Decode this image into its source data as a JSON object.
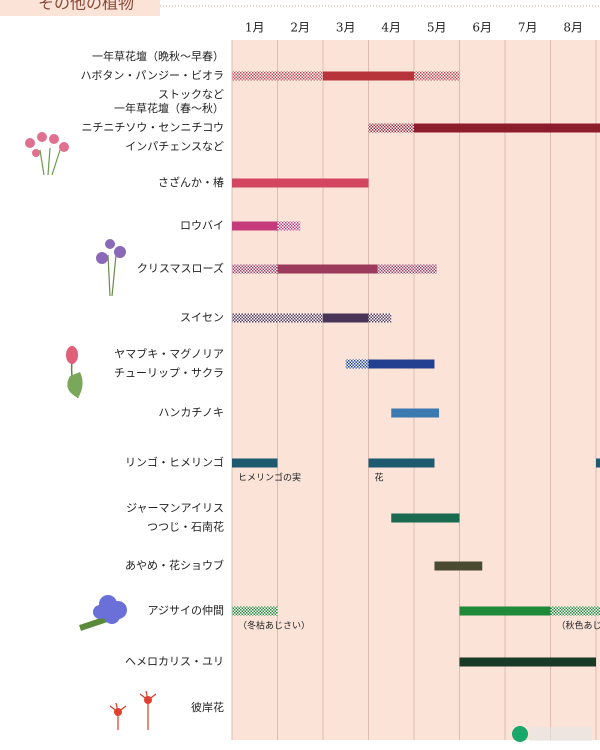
{
  "chart_data": {
    "type": "gantt",
    "title": "その他の植物",
    "months": [
      "1月",
      "2月",
      "3月",
      "4月",
      "5月",
      "6月",
      "7月",
      "8月"
    ],
    "xlim": [
      1,
      9.1
    ],
    "xticks": [
      1,
      2,
      3,
      4,
      5,
      6,
      7,
      8,
      9
    ],
    "grid": true,
    "background": "#fbe3d8",
    "rows": [
      {
        "label": [
          "一年草花壇（晩秋～早春）",
          "ハボタン・パンジー・ビオラ",
          "ストックなど"
        ],
        "segments": [
          {
            "start": 1,
            "end": 3,
            "style": "hatched",
            "color": "#c0464a"
          },
          {
            "start": 3,
            "end": 5,
            "style": "solid",
            "color": "#b7353a"
          },
          {
            "start": 5,
            "end": 6,
            "style": "hatched",
            "color": "#c0464a"
          }
        ]
      },
      {
        "label": [
          "一年草花壇（春～秋）",
          "ニチニチソウ・センニチコウ",
          "インパチェンスなど"
        ],
        "segments": [
          {
            "start": 4,
            "end": 5,
            "style": "hatched",
            "color": "#a02838"
          },
          {
            "start": 5,
            "end": 9.1,
            "style": "solid",
            "color": "#8c1b2c"
          }
        ]
      },
      {
        "label": [
          "さざんか・椿"
        ],
        "segments": [
          {
            "start": 1,
            "end": 4,
            "style": "solid",
            "color": "#d2475f"
          }
        ]
      },
      {
        "label": [
          "ロウバイ"
        ],
        "segments": [
          {
            "start": 1,
            "end": 2,
            "style": "solid",
            "color": "#c53a7a"
          },
          {
            "start": 2,
            "end": 2.5,
            "style": "hatched",
            "color": "#c53a7a"
          }
        ]
      },
      {
        "label": [
          "クリスマスローズ"
        ],
        "segments": [
          {
            "start": 1,
            "end": 2,
            "style": "hatched",
            "color": "#9c3a5c"
          },
          {
            "start": 2,
            "end": 4.2,
            "style": "solid",
            "color": "#9c3a5c"
          },
          {
            "start": 4.2,
            "end": 5.5,
            "style": "hatched",
            "color": "#9c3a5c"
          }
        ]
      },
      {
        "label": [
          "スイセン"
        ],
        "segments": [
          {
            "start": 1,
            "end": 3,
            "style": "hatched",
            "color": "#5a3a5e"
          },
          {
            "start": 3,
            "end": 4,
            "style": "solid",
            "color": "#4a3458"
          },
          {
            "start": 4,
            "end": 4.5,
            "style": "hatched",
            "color": "#5a3a5e"
          }
        ]
      },
      {
        "label": [
          "ヤマブキ・マグノリア",
          "チューリップ・サクラ"
        ],
        "segments": [
          {
            "start": 3.5,
            "end": 4,
            "style": "hatched",
            "color": "#233f8f"
          },
          {
            "start": 4,
            "end": 5.45,
            "style": "solid",
            "color": "#233f8f"
          }
        ]
      },
      {
        "label": [
          "ハンカチノキ"
        ],
        "segments": [
          {
            "start": 4.5,
            "end": 5.55,
            "style": "solid",
            "color": "#3a7ab0"
          }
        ]
      },
      {
        "label": [
          "リンゴ・ヒメリンゴ"
        ],
        "segments": [
          {
            "start": 1,
            "end": 2,
            "style": "solid",
            "color": "#1d5a70",
            "note": "ヒメリンゴの実"
          },
          {
            "start": 4,
            "end": 5.45,
            "style": "solid",
            "color": "#1d5a70",
            "note": "花"
          },
          {
            "start": 9,
            "end": 9.1,
            "style": "solid",
            "color": "#1d5a70"
          }
        ]
      },
      {
        "label": [
          "ジャーマンアイリス",
          "つつじ・石南花"
        ],
        "segments": [
          {
            "start": 4.5,
            "end": 6,
            "style": "solid",
            "color": "#1a6a50"
          }
        ]
      },
      {
        "label": [
          "あやめ・花ショウブ"
        ],
        "segments": [
          {
            "start": 5.45,
            "end": 6.5,
            "style": "solid",
            "color": "#4a4a32"
          }
        ]
      },
      {
        "label": [
          "アジサイの仲間"
        ],
        "segments": [
          {
            "start": 1,
            "end": 2,
            "style": "hatched",
            "color": "#2a8a3a",
            "note": "（冬枯あじさい）"
          },
          {
            "start": 6,
            "end": 8,
            "style": "solid",
            "color": "#1e8a3a"
          },
          {
            "start": 8,
            "end": 9.1,
            "style": "hatched",
            "color": "#2a8a3a",
            "note": "（秋色あじさい）"
          }
        ]
      },
      {
        "label": [
          "ヘメロカリス・ユリ"
        ],
        "segments": [
          {
            "start": 6,
            "end": 9,
            "style": "solid",
            "color": "#1a3a28"
          }
        ]
      },
      {
        "label": [
          "彼岸花"
        ],
        "segments": []
      }
    ]
  }
}
